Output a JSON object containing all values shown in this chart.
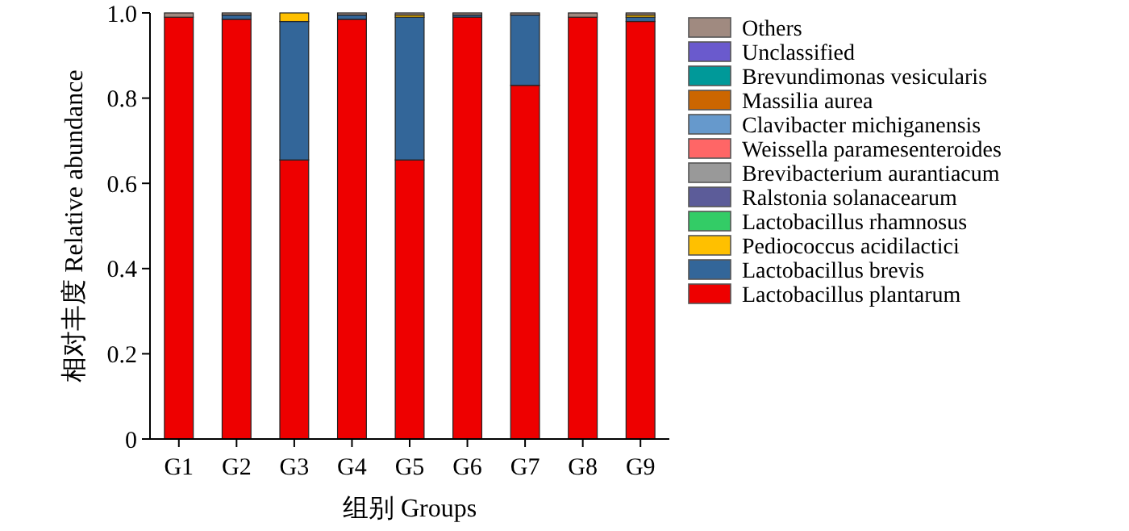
{
  "chart_data": {
    "type": "bar",
    "stacked": true,
    "xlabel": "组别 Groups",
    "ylabel": "相对丰度  Relative abundance",
    "categories": [
      "G1",
      "G2",
      "G3",
      "G4",
      "G5",
      "G6",
      "G7",
      "G8",
      "G9"
    ],
    "ylim": [
      0,
      1
    ],
    "yticks": [
      0,
      0.2,
      0.4,
      0.6,
      0.8,
      {
        "value": 1,
        "label": "1.0"
      }
    ],
    "legend": "right",
    "grid": false,
    "series": [
      {
        "name": "Lactobacillus plantarum",
        "color": "#ee0000",
        "values": [
          0.99,
          0.985,
          0.655,
          0.985,
          0.655,
          0.99,
          0.83,
          0.99,
          0.98
        ]
      },
      {
        "name": "Lactobacillus brevis",
        "color": "#336699",
        "values": [
          0,
          0.01,
          0.325,
          0.01,
          0.335,
          0.005,
          0.165,
          0,
          0.01
        ]
      },
      {
        "name": "Pediococcus acidilactici",
        "color": "#ffc000",
        "values": [
          0,
          0,
          0.02,
          0,
          0.005,
          0,
          0,
          0,
          0.005
        ]
      },
      {
        "name": "Lactobacillus rhamnosus",
        "color": "#33cc66",
        "values": [
          0,
          0,
          0,
          0,
          0,
          0,
          0,
          0,
          0
        ]
      },
      {
        "name": "Ralstonia solanacearum",
        "color": "#5c5c99",
        "values": [
          0,
          0,
          0,
          0,
          0,
          0,
          0,
          0,
          0
        ]
      },
      {
        "name": "Brevibacterium aurantiacum",
        "color": "#999999",
        "values": [
          0,
          0,
          0,
          0,
          0,
          0,
          0,
          0,
          0
        ]
      },
      {
        "name": "Weissella paramesenteroides",
        "color": "#ff6666",
        "values": [
          0,
          0,
          0,
          0,
          0,
          0,
          0,
          0,
          0
        ]
      },
      {
        "name": "Clavibacter michiganensis",
        "color": "#6699cc",
        "values": [
          0,
          0,
          0,
          0,
          0,
          0,
          0,
          0,
          0
        ]
      },
      {
        "name": "Massilia aurea",
        "color": "#cc6600",
        "values": [
          0,
          0,
          0,
          0,
          0,
          0,
          0,
          0,
          0
        ]
      },
      {
        "name": "Brevundimonas vesicularis",
        "color": "#009999",
        "values": [
          0,
          0,
          0,
          0,
          0,
          0,
          0,
          0,
          0
        ]
      },
      {
        "name": "Unclassified",
        "color": "#6a5acd",
        "values": [
          0,
          0,
          0,
          0,
          0,
          0,
          0,
          0,
          0
        ]
      },
      {
        "name": "Others",
        "color": "#a08a80",
        "values": [
          0.01,
          0.005,
          0,
          0.005,
          0.005,
          0.005,
          0.005,
          0.01,
          0.005
        ]
      }
    ]
  }
}
